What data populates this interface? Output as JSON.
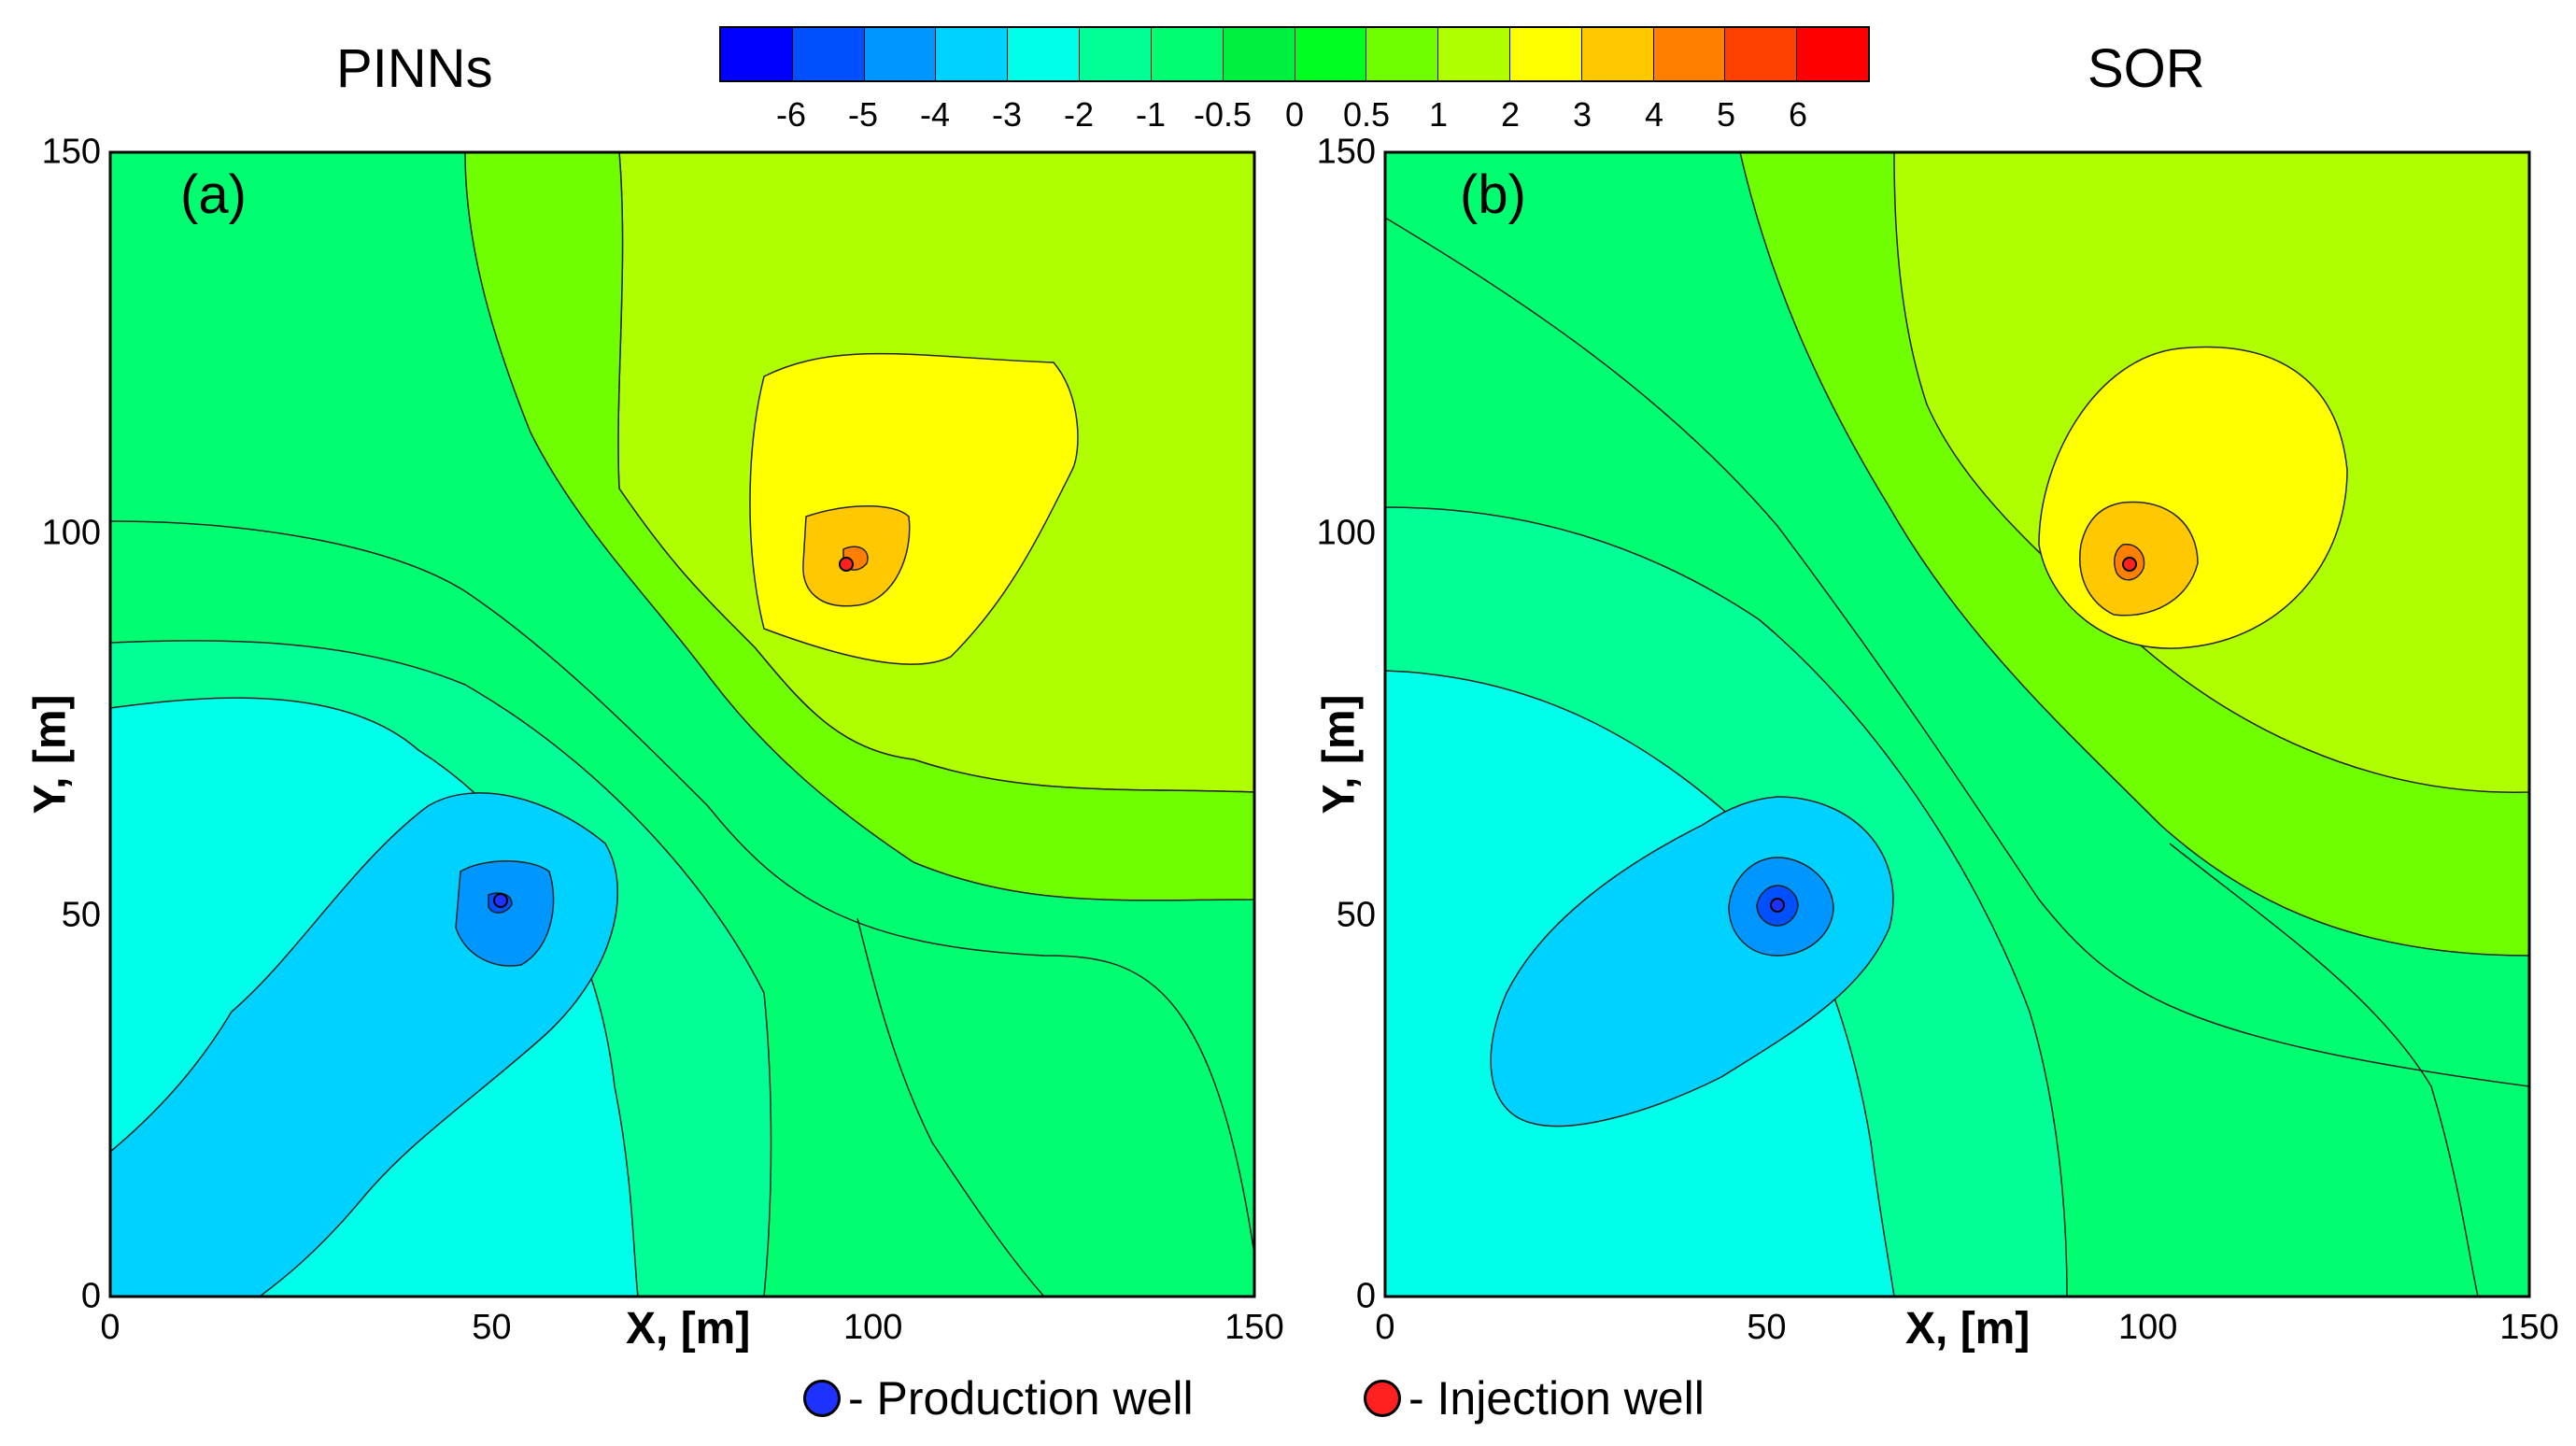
{
  "chart_data": [
    {
      "type": "contour",
      "panel_title": "PINNs",
      "panel_label": "(a)",
      "xlabel": "X, [m]",
      "ylabel": "Y, [m]",
      "xlim": [
        0,
        150
      ],
      "ylim": [
        0,
        150
      ],
      "xticks": [
        "0",
        "50",
        "100",
        "150"
      ],
      "yticks": [
        "0",
        "50",
        "100",
        "150"
      ],
      "production_well": {
        "x": 52,
        "y": 52
      },
      "injection_well": {
        "x": 96,
        "y": 96
      }
    },
    {
      "type": "contour",
      "panel_title": "SOR",
      "panel_label": "(b)",
      "xlabel": "X, [m]",
      "ylabel": "Y, [m]",
      "xlim": [
        0,
        150
      ],
      "ylim": [
        0,
        150
      ],
      "xticks": [
        "0",
        "50",
        "100",
        "150"
      ],
      "yticks": [
        "0",
        "50",
        "100",
        "150"
      ],
      "production_well": {
        "x": 52,
        "y": 52
      },
      "injection_well": {
        "x": 96,
        "y": 96
      }
    }
  ],
  "colorbar": {
    "labels": [
      "-6",
      "-5",
      "-4",
      "-3",
      "-2",
      "-1",
      "-0.5",
      "0",
      "0.5",
      "1",
      "2",
      "3",
      "4",
      "5",
      "6"
    ],
    "colors": [
      "#0000ff",
      "#0050ff",
      "#0096ff",
      "#00d2ff",
      "#00ffea",
      "#00ff96",
      "#00ff70",
      "#00f040",
      "#00ff20",
      "#70ff00",
      "#b0ff00",
      "#ffff00",
      "#ffc800",
      "#ff8000",
      "#ff4000",
      "#ff0000"
    ]
  },
  "legend": {
    "production_label": "- Production well",
    "injection_label": "- Injection well",
    "production_color": "#1e32ff",
    "injection_color": "#ff2020"
  }
}
